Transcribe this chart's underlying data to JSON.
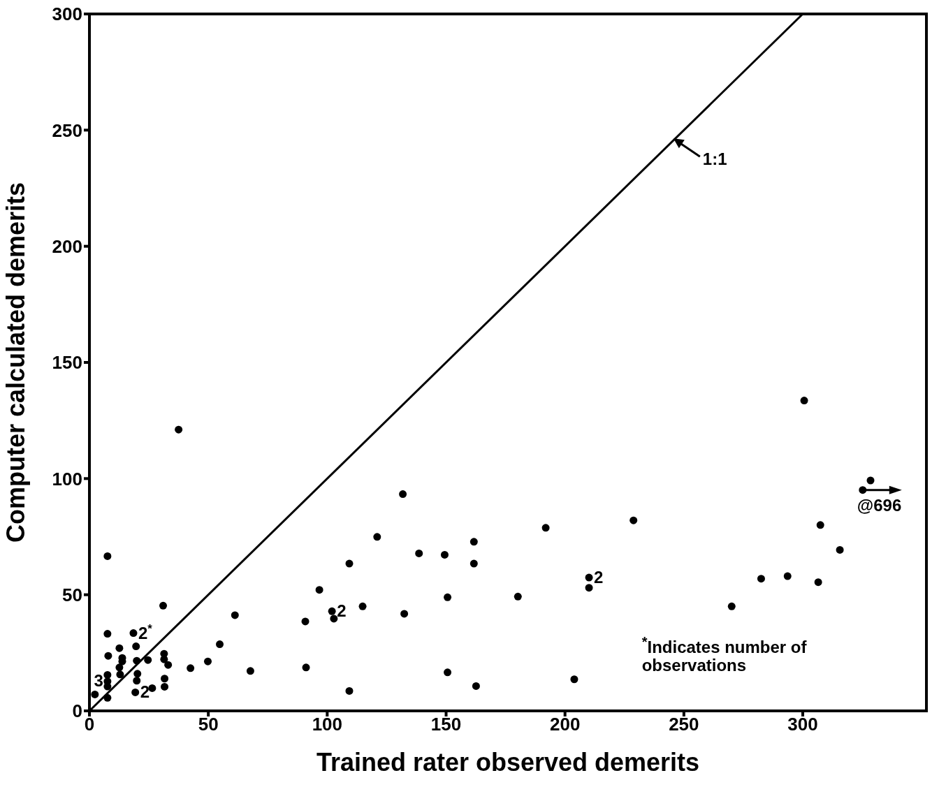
{
  "chart_data": {
    "type": "scatter",
    "xlabel": "Trained rater observed demerits",
    "ylabel": "Computer calculated demerits",
    "xlim": [
      0,
      352
    ],
    "ylim": [
      0,
      300
    ],
    "xticks": [
      0,
      50,
      100,
      150,
      200,
      250,
      300
    ],
    "yticks": [
      0,
      50,
      100,
      150,
      200,
      250,
      300
    ],
    "marker": "circle",
    "line_style": "solid",
    "series": [
      {
        "color": "#000000",
        "x": [
          31,
          7.6,
          18.5,
          12.6,
          19.6,
          7.9,
          13.8,
          13.8,
          19.9,
          24.6,
          31.4,
          31.4,
          33.1,
          12.6,
          12.9,
          20.2,
          19.9,
          7.6,
          7.6,
          7.6,
          31.6,
          31.6,
          19.3,
          26.4,
          2.3,
          7.6,
          42.5,
          49.8,
          54.8,
          61.2,
          67.7,
          7.6,
          37.5,
          131.8,
          121,
          109.3,
          138.6,
          149.4,
          161.7,
          161.7,
          96.7,
          102,
          102.8,
          114.9,
          90.8,
          132.4,
          150.6,
          180.2,
          91.1,
          150.6,
          162.6,
          109.3,
          300.6,
          191.9,
          228.8,
          210.1,
          210.1,
          328.5,
          325.2,
          307.4,
          315.6,
          282.5,
          293.6,
          306.5,
          270.1,
          203.9
        ],
        "values": [
          45.3,
          33.2,
          33.5,
          27,
          27.8,
          23.7,
          22.8,
          21.3,
          21.6,
          21.9,
          24.6,
          22.2,
          19.8,
          18.7,
          15.7,
          16,
          13,
          15.5,
          12.7,
          10.5,
          13.9,
          10.4,
          8,
          9.8,
          7.1,
          5.6,
          18.4,
          21.3,
          28.7,
          41.2,
          17.2,
          66.6,
          121.1,
          93.3,
          74.9,
          63.4,
          67.8,
          67.2,
          72.8,
          63.4,
          52.1,
          42.9,
          39.7,
          45,
          38.5,
          41.8,
          48.9,
          49.2,
          18.7,
          16.6,
          10.7,
          8.6,
          133.6,
          78.8,
          82,
          57.4,
          53,
          99.2,
          95.1,
          80,
          69.3,
          56.9,
          58,
          55.4,
          45,
          13.6
        ]
      },
      {
        "type": "line",
        "marker": "none",
        "color": "#000000",
        "x": [
          0,
          300
        ],
        "values": [
          0,
          300
        ]
      }
    ],
    "annotations": [
      {
        "text": "1:1",
        "x": 245,
        "y": 247
      },
      {
        "text": "2$^{*}$",
        "x": 18.5,
        "y": 33.5
      },
      {
        "text": "2",
        "x": 19.3,
        "y": 8
      },
      {
        "text": "3",
        "x": 7.6,
        "y": 13
      },
      {
        "text": "2",
        "x": 102,
        "y": 42.9
      },
      {
        "text": "2",
        "x": 210.1,
        "y": 57.4
      },
      {
        "text": "@696",
        "x": 325.2,
        "y": 95.1
      },
      "$^{*}$Indicates number of observations"
    ]
  }
}
